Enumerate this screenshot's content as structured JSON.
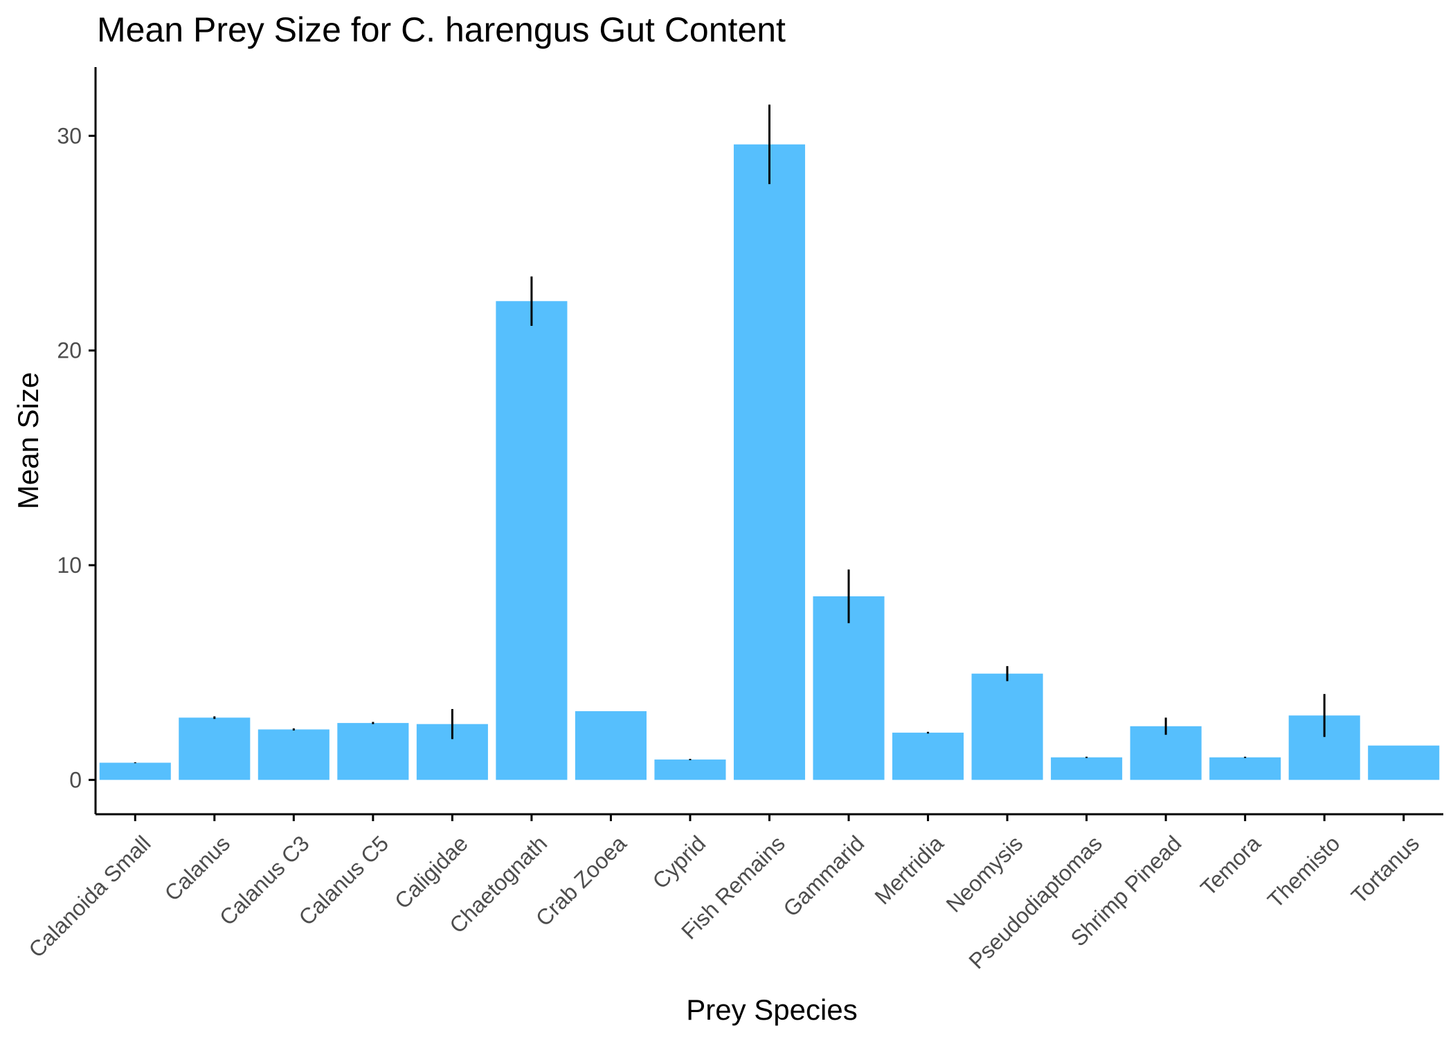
{
  "chart_data": {
    "type": "bar",
    "title": "Mean Prey Size for C. harengus Gut Content",
    "xlabel": "Prey Species",
    "ylabel": "Mean Size",
    "ylim": [
      -1.6,
      33.2
    ],
    "yticks": [
      0,
      10,
      20,
      30
    ],
    "grid": false,
    "legend": "none",
    "bar_color": "#56BFFD",
    "error_color": "#000000",
    "categories": [
      "Calanoida Small",
      "Calanus",
      "Calanus C3",
      "Calanus C5",
      "Caligidae",
      "Chaetognath",
      "Crab Zooea",
      "Cyprid",
      "Fish Remains",
      "Gammarid",
      "Mertridia",
      "Neomysis",
      "Pseudodiaptomas",
      "Shrimp Pinead",
      "Temora",
      "Themisto",
      "Tortanus"
    ],
    "values": [
      0.8,
      2.9,
      2.35,
      2.65,
      2.6,
      22.3,
      3.2,
      0.95,
      29.6,
      8.55,
      2.2,
      4.95,
      1.05,
      2.5,
      1.05,
      3.0,
      1.6
    ],
    "errors": [
      0.02,
      0.06,
      0.05,
      0.05,
      0.7,
      1.15,
      0.0,
      0.03,
      1.85,
      1.25,
      0.04,
      0.35,
      0.03,
      0.4,
      0.03,
      1.0,
      0.0
    ]
  }
}
